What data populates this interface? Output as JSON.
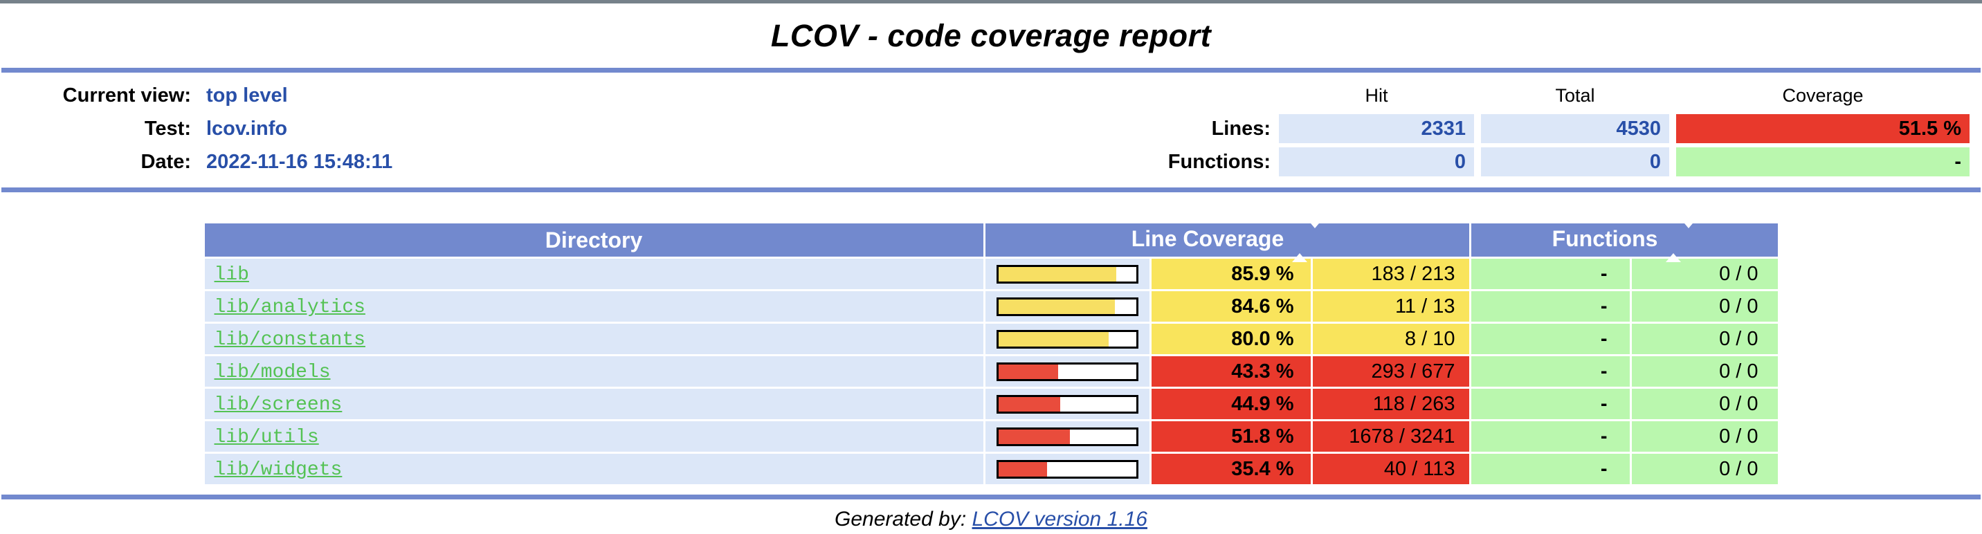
{
  "title": "LCOV - code coverage report",
  "header": {
    "fields": [
      {
        "label": "Current view:",
        "value": "top level"
      },
      {
        "label": "Test:",
        "value": "lcov.info"
      },
      {
        "label": "Date:",
        "value": "2022-11-16 15:48:11"
      }
    ],
    "summary": {
      "col_headers": [
        "Hit",
        "Total",
        "Coverage"
      ],
      "rows": [
        {
          "label": "Lines:",
          "hit": "2331",
          "total": "4530",
          "coverage": "51.5 %",
          "level": "low"
        },
        {
          "label": "Functions:",
          "hit": "0",
          "total": "0",
          "coverage": "-",
          "level": "high"
        }
      ]
    }
  },
  "table": {
    "headers": {
      "directory": "Directory",
      "line_coverage": "Line Coverage",
      "functions": "Functions"
    },
    "rows": [
      {
        "name": "lib",
        "line_pct": "85.9 %",
        "line_pct_num": 85.9,
        "line_ratio": "183 / 213",
        "line_level": "medium",
        "func_dash": "-",
        "func_ratio": "0 / 0",
        "func_level": "high"
      },
      {
        "name": "lib/analytics",
        "line_pct": "84.6 %",
        "line_pct_num": 84.6,
        "line_ratio": "11 / 13",
        "line_level": "medium",
        "func_dash": "-",
        "func_ratio": "0 / 0",
        "func_level": "high"
      },
      {
        "name": "lib/constants",
        "line_pct": "80.0 %",
        "line_pct_num": 80.0,
        "line_ratio": "8 / 10",
        "line_level": "medium",
        "func_dash": "-",
        "func_ratio": "0 / 0",
        "func_level": "high"
      },
      {
        "name": "lib/models",
        "line_pct": "43.3 %",
        "line_pct_num": 43.3,
        "line_ratio": "293 / 677",
        "line_level": "low",
        "func_dash": "-",
        "func_ratio": "0 / 0",
        "func_level": "high"
      },
      {
        "name": "lib/screens",
        "line_pct": "44.9 %",
        "line_pct_num": 44.9,
        "line_ratio": "118 / 263",
        "line_level": "low",
        "func_dash": "-",
        "func_ratio": "0 / 0",
        "func_level": "high"
      },
      {
        "name": "lib/utils",
        "line_pct": "51.8 %",
        "line_pct_num": 51.8,
        "line_ratio": "1678 / 3241",
        "line_level": "low",
        "func_dash": "-",
        "func_ratio": "0 / 0",
        "func_level": "high"
      },
      {
        "name": "lib/widgets",
        "line_pct": "35.4 %",
        "line_pct_num": 35.4,
        "line_ratio": "40 / 113",
        "line_level": "low",
        "func_dash": "-",
        "func_ratio": "0 / 0",
        "func_level": "high"
      }
    ]
  },
  "footer": {
    "prefix": "Generated by: ",
    "link": "LCOV version 1.16"
  },
  "colors": {
    "ruler_blue": "#7289CE",
    "table_header_blue": "#7289CE",
    "cell_light_blue": "#DCE7F8",
    "value_blue": "#284FA8",
    "coverage_low_red": "#E8392C",
    "coverage_medium_yellow": "#F9E45C",
    "coverage_high_green": "#BAF7AE",
    "directory_link_green": "#54C254",
    "top_edge_gray": "#76818A"
  }
}
